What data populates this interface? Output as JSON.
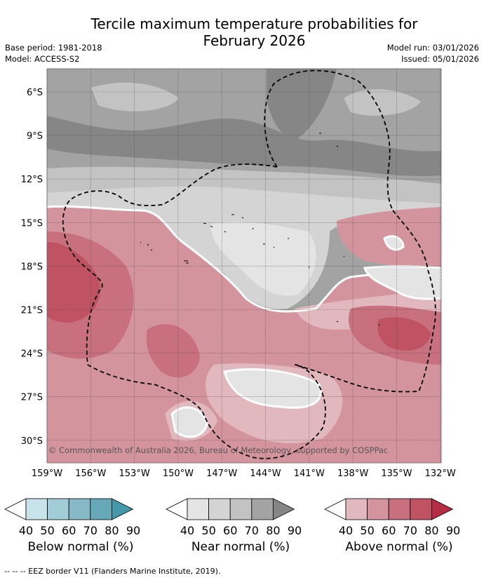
{
  "title_line1": "Tercile maximum temperature probabilities for",
  "title_line2": "February 2026",
  "base_period": "Base period: 1981-2018",
  "model": "Model: ACCESS-S2",
  "model_run": "Model run: 03/01/2026",
  "issued": "Issued: 05/01/2026",
  "map": {
    "lat_labels": [
      "6°S",
      "9°S",
      "12°S",
      "15°S",
      "18°S",
      "21°S",
      "24°S",
      "27°S",
      "30°S"
    ],
    "lon_labels": [
      "159°W",
      "156°W",
      "153°W",
      "150°W",
      "147°W",
      "144°W",
      "141°W",
      "138°W",
      "135°W",
      "132°W"
    ],
    "copyright": "© Commonwealth of Australia 2026, Bureau of Meteorology, supported by COSPPac"
  },
  "legends": [
    {
      "name": "Below normal (%)",
      "ticks": [
        "40",
        "50",
        "60",
        "70",
        "80",
        "90"
      ],
      "colors": [
        "#ffffff",
        "#c9e3ea",
        "#a3cdd6",
        "#86b9c5",
        "#66a8b8",
        "#4597aa"
      ]
    },
    {
      "name": "Near normal (%)",
      "ticks": [
        "40",
        "50",
        "60",
        "70",
        "80",
        "90"
      ],
      "colors": [
        "#ffffff",
        "#e4e4e4",
        "#d4d4d4",
        "#c3c3c3",
        "#a3a3a3",
        "#868686"
      ]
    },
    {
      "name": "Above normal (%)",
      "ticks": [
        "40",
        "50",
        "60",
        "70",
        "80",
        "90"
      ],
      "colors": [
        "#ffffff",
        "#e2b8bf",
        "#d4949e",
        "#c8707e",
        "#bf5364",
        "#b52c45"
      ]
    }
  ],
  "footnote": "--  --  -- EEZ border V11 (Flanders Marine Institute, 2019)."
}
